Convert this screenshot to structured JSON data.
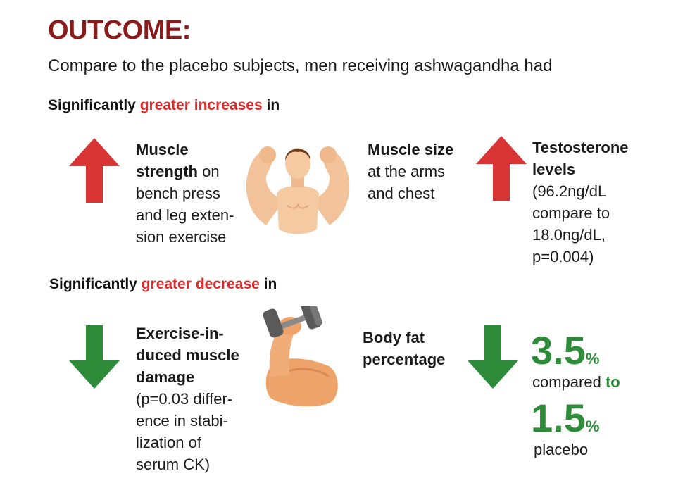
{
  "title": "OUTCOME:",
  "intro": "Compare to the placebo subjects, men receiving ashwagandha had",
  "colors": {
    "title": "#8b1a1a",
    "red_accent": "#e02a2a",
    "red_arrow": "#d93535",
    "green": "#2e8b3a"
  },
  "increase_section": {
    "heading_pre": "Significantly",
    "heading_accent": "greater increases",
    "heading_post": "in",
    "items": [
      {
        "icon": "up-arrow-icon",
        "bold": "Muscle strength",
        "text": " on bench press and leg extension exercise",
        "line1": "Muscle",
        "line2_bold": "strength",
        "line2_rest": " on",
        "line3": "bench press",
        "line4": "and leg exten-",
        "line5": "sion exercise"
      },
      {
        "icon": "flexing-man-icon",
        "bold": "Muscle size",
        "line2": "at the arms",
        "line3": "and chest"
      },
      {
        "icon": "up-arrow-icon",
        "bold1": "Testosterone",
        "bold2": "levels",
        "line3": "(96.2ng/dL",
        "line4": "compare to",
        "line5": "18.0ng/dL,",
        "line6": "p=0.004)"
      }
    ]
  },
  "decrease_section": {
    "heading_pre": "Significantly",
    "heading_accent": "greater decrease",
    "heading_post": "in",
    "items": [
      {
        "icon": "down-arrow-icon",
        "bold1": "Exercise-in-",
        "bold2": "duced muscle",
        "bold3": "damage",
        "line4": "(p=0.03 differ-",
        "line5": "ence in stabi-",
        "line6": "lization of",
        "line7": "serum CK)"
      },
      {
        "icon": "dumbbell-arm-icon",
        "bold1": "Body fat",
        "bold2": "percentage"
      },
      {
        "icon": "down-arrow-icon",
        "value1": "3.5",
        "unit": "%",
        "compared": "compared",
        "to": "to",
        "value2": "1.5",
        "placebo": "placebo"
      }
    ]
  }
}
